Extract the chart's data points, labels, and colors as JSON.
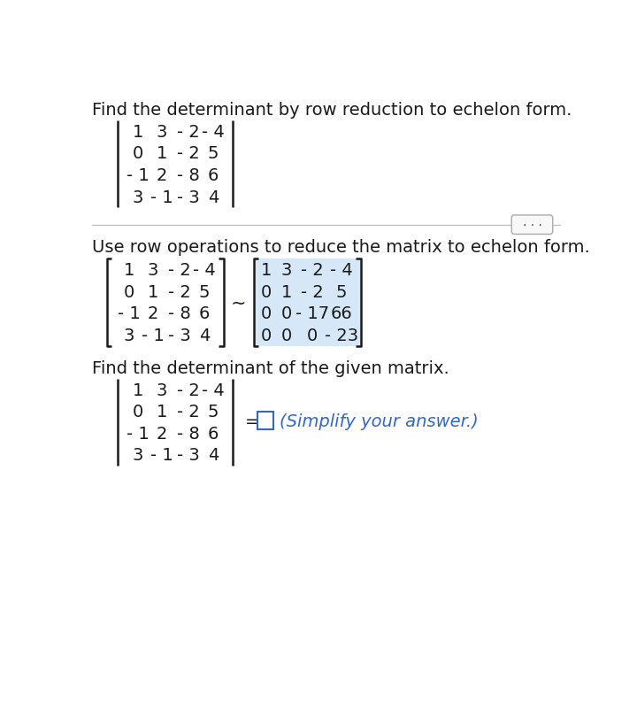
{
  "bg_color": "#ffffff",
  "title1": "Find the determinant by row reduction to echelon form.",
  "matrix1": [
    [
      "1",
      "3",
      "- 2",
      "- 4"
    ],
    [
      "0",
      "1",
      "- 2",
      "5"
    ],
    [
      "- 1",
      "2",
      "- 8",
      "6"
    ],
    [
      "3",
      "- 1",
      "- 3",
      "4"
    ]
  ],
  "section2_title": "Use row operations to reduce the matrix to echelon form.",
  "matrix2a": [
    [
      "1",
      "3",
      "- 2",
      "- 4"
    ],
    [
      "0",
      "1",
      "- 2",
      "5"
    ],
    [
      "- 1",
      "2",
      "- 8",
      "6"
    ],
    [
      "3",
      "- 1",
      "- 3",
      "4"
    ]
  ],
  "matrix2b": [
    [
      "1",
      "3",
      "- 2",
      "- 4"
    ],
    [
      "0",
      "1",
      "- 2",
      "5"
    ],
    [
      "0",
      "0",
      "- 17",
      "66"
    ],
    [
      "0",
      "0",
      "0",
      "- 23"
    ]
  ],
  "section3_title": "Find the determinant of the given matrix.",
  "matrix3": [
    [
      "1",
      "3",
      "- 2",
      "- 4"
    ],
    [
      "0",
      "1",
      "- 2",
      "5"
    ],
    [
      "- 1",
      "2",
      "- 8",
      "6"
    ],
    [
      "3",
      "- 1",
      "- 3",
      "4"
    ]
  ],
  "simplify_text": "(Simplify your answer.)",
  "highlight_color": "#d6e8f7",
  "text_color": "#1a1a1a",
  "blue_color": "#3366cc",
  "font_size": 14,
  "sep_color": "#bbbbbb"
}
